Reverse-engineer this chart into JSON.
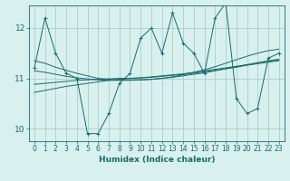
{
  "xlabel": "Humidex (Indice chaleur)",
  "ylabel": "",
  "bg_color": "#d8f0ee",
  "grid_color": "#a0c8c4",
  "line_color": "#1a6b6b",
  "xlim": [
    -0.5,
    23.5
  ],
  "ylim": [
    9.75,
    12.45
  ],
  "yticks": [
    10,
    11,
    12
  ],
  "xticks": [
    0,
    1,
    2,
    3,
    4,
    5,
    6,
    7,
    8,
    9,
    10,
    11,
    12,
    13,
    14,
    15,
    16,
    17,
    18,
    19,
    20,
    21,
    22,
    23
  ],
  "series": {
    "main": [
      11.2,
      12.2,
      11.5,
      11.1,
      11.0,
      9.9,
      9.9,
      10.3,
      10.9,
      11.1,
      11.8,
      12.0,
      11.5,
      12.3,
      11.7,
      11.5,
      11.1,
      12.2,
      12.5,
      10.6,
      10.3,
      10.4,
      11.4,
      11.5
    ],
    "smooth1": [
      11.35,
      11.3,
      11.22,
      11.16,
      11.1,
      11.05,
      11.0,
      10.98,
      10.97,
      10.97,
      10.97,
      10.98,
      11.0,
      11.03,
      11.07,
      11.12,
      11.17,
      11.23,
      11.3,
      11.37,
      11.44,
      11.5,
      11.55,
      11.58
    ],
    "smooth2": [
      11.15,
      11.12,
      11.08,
      11.04,
      11.01,
      10.99,
      10.97,
      10.96,
      10.96,
      10.96,
      10.97,
      10.98,
      11.0,
      11.02,
      11.05,
      11.08,
      11.11,
      11.15,
      11.19,
      11.23,
      11.27,
      11.31,
      11.35,
      11.38
    ],
    "smooth3": [
      10.88,
      10.9,
      10.92,
      10.94,
      10.96,
      10.97,
      10.98,
      10.99,
      11.0,
      11.0,
      11.01,
      11.02,
      11.04,
      11.06,
      11.08,
      11.1,
      11.13,
      11.16,
      11.19,
      11.22,
      11.26,
      11.29,
      11.32,
      11.35
    ],
    "smooth4": [
      10.72,
      10.76,
      10.8,
      10.84,
      10.87,
      10.9,
      10.93,
      10.96,
      10.98,
      11.0,
      11.01,
      11.03,
      11.05,
      11.07,
      11.09,
      11.12,
      11.15,
      11.18,
      11.21,
      11.24,
      11.27,
      11.31,
      11.34,
      11.37
    ]
  }
}
